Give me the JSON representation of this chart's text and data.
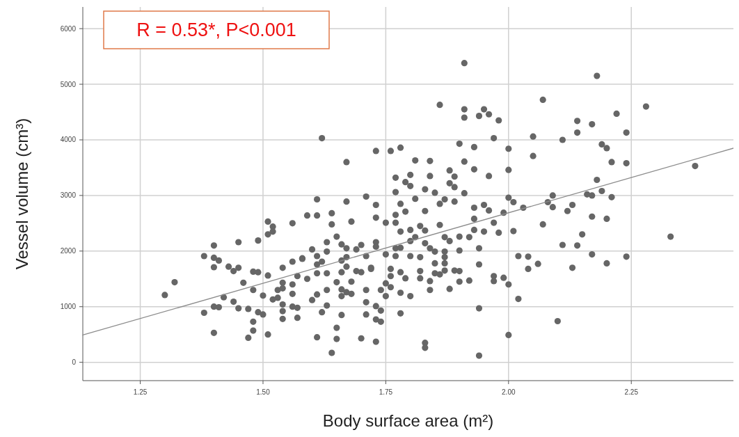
{
  "chart_data": {
    "type": "scatter",
    "xlabel": "Body surface area (m²)",
    "ylabel": "Vessel volume (cm³)",
    "annotations": [
      "R = 0.53*, P<0.001"
    ],
    "xlim": [
      1.133,
      2.458
    ],
    "xticks": [
      {
        "value": 1.25,
        "label": "1.25"
      },
      {
        "value": 1.5,
        "label": "1.50"
      },
      {
        "value": 1.75,
        "label": "1.75"
      },
      {
        "value": 2,
        "label": "2.00"
      },
      {
        "value": 2.25,
        "label": "2.25"
      }
    ],
    "ylim": [
      -330,
      6390
    ],
    "yticks": [
      0,
      1000,
      2000,
      3000,
      4000,
      5000,
      6000
    ],
    "grid": true,
    "series": [
      {
        "marker": "circle",
        "color": "#666666",
        "x": [
          1.3,
          1.32,
          1.4,
          1.38,
          1.4,
          1.41,
          1.4,
          1.43,
          1.45,
          1.44,
          1.45,
          1.49,
          1.51,
          1.52,
          1.52,
          1.51,
          1.56,
          1.58,
          1.56,
          1.54,
          1.48,
          1.49,
          1.51,
          1.46,
          1.48,
          1.5,
          1.54,
          1.56,
          1.57,
          1.53,
          1.54,
          1.56,
          1.42,
          1.44,
          1.45,
          1.4,
          1.41,
          1.38,
          1.47,
          1.49,
          1.5,
          1.52,
          1.53,
          1.54,
          1.54,
          1.56,
          1.54,
          1.57,
          1.48,
          1.48,
          1.4,
          1.47,
          1.51,
          1.91,
          1.86,
          1.91,
          1.91,
          1.95,
          1.94,
          1.96,
          1.98,
          1.62,
          1.97,
          1.9,
          1.93,
          2.0,
          1.73,
          1.76,
          1.78,
          1.67,
          1.81,
          1.84,
          1.91,
          1.93,
          1.88,
          2.0,
          1.77,
          1.8,
          1.84,
          1.89,
          1.96,
          1.79,
          1.8,
          1.88,
          1.89,
          1.83,
          1.77,
          1.85,
          1.91,
          1.61,
          1.67,
          1.71,
          1.73,
          1.78,
          1.81,
          1.86,
          1.87,
          1.89,
          2.0,
          2.01,
          1.93,
          1.95,
          1.96,
          1.59,
          1.61,
          1.64,
          1.64,
          1.68,
          1.73,
          1.75,
          1.77,
          1.77,
          1.79,
          1.83,
          1.78,
          1.8,
          1.82,
          1.83,
          1.86,
          1.93,
          1.97,
          1.99,
          1.93,
          1.95,
          1.98,
          2.01,
          1.65,
          1.63,
          1.66,
          1.7,
          1.73,
          1.73,
          1.87,
          1.88,
          1.9,
          1.92,
          1.81,
          1.8,
          1.83,
          1.6,
          1.63,
          1.67,
          1.69,
          1.77,
          1.78,
          1.84,
          1.85,
          1.87,
          1.9,
          1.94,
          1.58,
          1.61,
          1.62,
          1.66,
          1.67,
          1.71,
          1.75,
          1.77,
          1.8,
          1.82,
          1.87,
          1.87,
          1.85,
          1.94,
          2.02,
          1.61,
          1.59,
          1.61,
          1.63,
          1.66,
          1.67,
          1.69,
          1.7,
          1.72,
          1.72,
          1.76,
          1.78,
          1.76,
          1.82,
          1.82,
          1.85,
          1.86,
          1.87,
          1.89,
          1.9,
          1.79,
          1.75,
          1.76,
          1.84,
          1.84,
          1.9,
          1.92,
          1.97,
          1.97,
          1.99,
          2.0,
          1.88,
          1.65,
          1.68,
          1.63,
          1.66,
          1.67,
          1.68,
          1.71,
          1.74,
          1.75,
          1.78,
          1.8,
          1.6,
          1.61,
          1.66,
          1.71,
          1.63,
          1.62,
          1.66,
          1.71,
          1.73,
          1.74,
          1.73,
          1.74,
          1.78,
          2.02,
          1.94,
          1.65,
          1.61,
          1.65,
          1.7,
          1.73,
          1.83,
          1.83,
          2.0,
          1.64,
          1.94,
          1.57,
          2.18,
          2.07,
          2.28,
          2.22,
          2.14,
          2.17,
          2.14,
          2.24,
          2.05,
          2.11,
          2.19,
          2.2,
          2.05,
          2.21,
          2.24,
          2.38,
          2.18,
          2.19,
          2.09,
          2.16,
          2.17,
          2.21,
          2.08,
          2.09,
          2.13,
          2.12,
          2.03,
          2.17,
          2.2,
          2.07,
          2.15,
          2.33,
          2.11,
          2.14,
          2.04,
          2.06,
          2.04,
          2.13,
          2.17,
          2.2,
          2.24,
          2.1
        ],
        "values": [
          1210,
          1440,
          2100,
          1910,
          1880,
          1830,
          1710,
          1720,
          2160,
          1640,
          1700,
          2190,
          2530,
          2440,
          2350,
          2300,
          2500,
          1860,
          1810,
          1700,
          1630,
          1620,
          1560,
          1430,
          1300,
          1200,
          1430,
          1400,
          1550,
          1300,
          1330,
          1230,
          1170,
          1090,
          970,
          1000,
          990,
          890,
          960,
          900,
          860,
          1130,
          1160,
          1040,
          920,
          1000,
          780,
          800,
          730,
          570,
          530,
          440,
          500,
          5380,
          4630,
          4550,
          4400,
          4550,
          4430,
          4460,
          4350,
          4030,
          4030,
          3930,
          3870,
          3840,
          3800,
          3800,
          3860,
          3600,
          3630,
          3620,
          3610,
          3470,
          3450,
          3460,
          3320,
          3370,
          3350,
          3340,
          3350,
          3240,
          3170,
          3220,
          3150,
          3110,
          3060,
          3050,
          3040,
          2930,
          2890,
          2980,
          2830,
          2850,
          2940,
          2850,
          2930,
          2890,
          2960,
          2880,
          2780,
          2830,
          2730,
          2640,
          2640,
          2680,
          2480,
          2530,
          2600,
          2510,
          2650,
          2510,
          2710,
          2720,
          2350,
          2380,
          2450,
          2370,
          2470,
          2580,
          2510,
          2690,
          2380,
          2350,
          2330,
          2360,
          2260,
          2160,
          2120,
          2110,
          2160,
          2080,
          2250,
          2180,
          2260,
          2250,
          2250,
          2180,
          2140,
          2030,
          1990,
          2050,
          2030,
          2050,
          2060,
          2050,
          1990,
          1990,
          2010,
          2050,
          1870,
          1910,
          1810,
          1830,
          1890,
          1910,
          1940,
          1910,
          1910,
          1890,
          1890,
          1780,
          1780,
          1760,
          1910,
          1760,
          1500,
          1600,
          1600,
          1620,
          1720,
          1640,
          1620,
          1700,
          1680,
          1680,
          1620,
          1550,
          1640,
          1510,
          1600,
          1580,
          1650,
          1650,
          1640,
          1510,
          1420,
          1350,
          1460,
          1300,
          1450,
          1470,
          1550,
          1460,
          1520,
          1400,
          1320,
          1440,
          1450,
          1300,
          1310,
          1260,
          1230,
          1300,
          1300,
          1190,
          1250,
          1190,
          1120,
          1220,
          1190,
          1080,
          1020,
          900,
          850,
          860,
          1010,
          930,
          770,
          730,
          880,
          1140,
          970,
          620,
          450,
          420,
          430,
          370,
          350,
          260,
          490,
          170,
          120,
          980,
          5150,
          4720,
          4600,
          4470,
          4340,
          4280,
          4130,
          4130,
          4060,
          4000,
          3920,
          3850,
          3710,
          3600,
          3580,
          3530,
          3280,
          3080,
          3000,
          3020,
          3000,
          2970,
          2880,
          2790,
          2830,
          2720,
          2780,
          2620,
          2580,
          2480,
          2300,
          2260,
          2110,
          2100,
          1900,
          1770,
          1680,
          1700,
          1940,
          1780,
          1900,
          740
        ]
      },
      {
        "type": "line",
        "color": "#8c8c8c",
        "line_style": "solid",
        "x": [
          1.133,
          2.458
        ],
        "values": [
          490,
          3850
        ]
      }
    ]
  }
}
